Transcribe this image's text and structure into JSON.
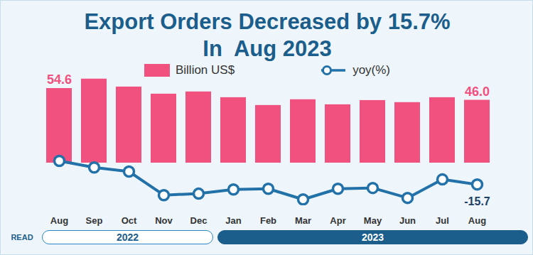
{
  "chart_data": {
    "type": "bar",
    "title": "Export Orders Decreased by 15.7%",
    "subtitle": "In  Aug 2023",
    "categories": [
      "Aug",
      "Sep",
      "Oct",
      "Nov",
      "Dec",
      "Jan",
      "Feb",
      "Mar",
      "Apr",
      "May",
      "Jun",
      "Jul",
      "Aug"
    ],
    "series": [
      {
        "name": "Billion US$",
        "type": "bar",
        "color": "#f0517e",
        "values": [
          54.6,
          61.5,
          55.7,
          50.5,
          52.1,
          47.9,
          42.2,
          46.4,
          42.7,
          45.8,
          44.3,
          47.9,
          46.0
        ],
        "value_labels": [
          "54.6",
          null,
          null,
          null,
          null,
          null,
          null,
          null,
          null,
          null,
          null,
          null,
          "46.0"
        ]
      },
      {
        "name": "yoy(%)",
        "type": "line",
        "axis": "y2",
        "color": "#2271a8",
        "marker": "circle",
        "values": [
          0.2,
          -4.2,
          -7.0,
          -22.9,
          -21.9,
          -19.1,
          -18.6,
          -25.8,
          -18.6,
          -18.1,
          -24.8,
          -12.3,
          -15.7
        ],
        "value_labels": [
          null,
          null,
          null,
          null,
          null,
          null,
          null,
          null,
          null,
          null,
          null,
          null,
          "-15.7"
        ]
      }
    ],
    "ylim": [
      0,
      65
    ],
    "y2lim": [
      -30,
      5
    ],
    "tick_labels": "x",
    "legend": "top",
    "year_groups": [
      {
        "label": "2022",
        "count": 5
      },
      {
        "label": "2023",
        "count": 8
      }
    ],
    "badge": "READ"
  }
}
